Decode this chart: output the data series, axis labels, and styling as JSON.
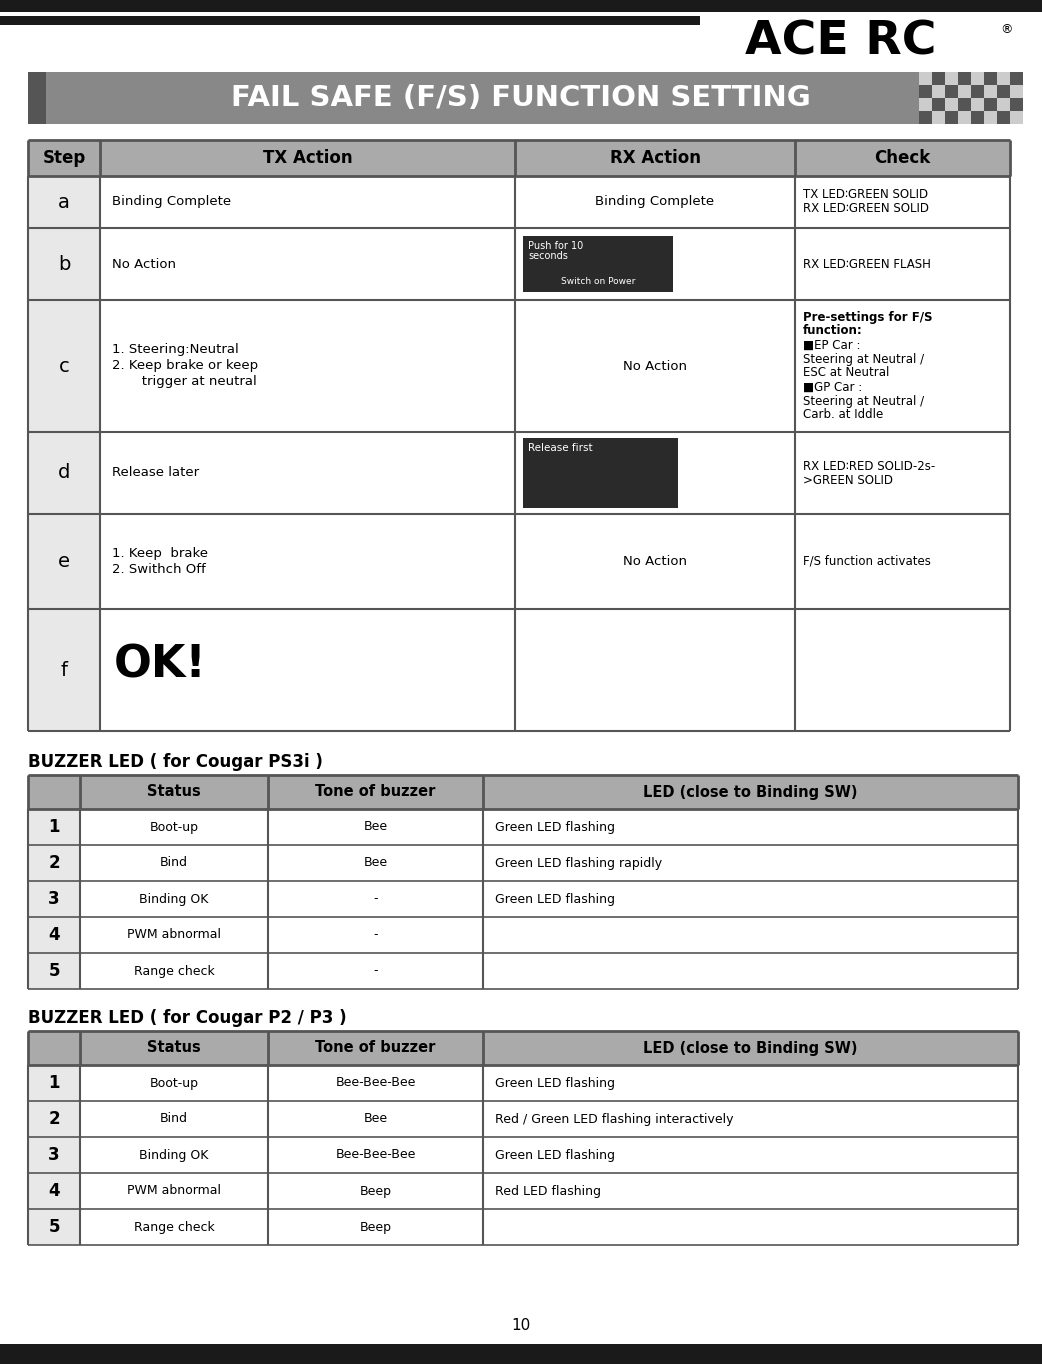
{
  "page_bg": "#ffffff",
  "top_bar_color": "#1a1a1a",
  "title_bg": "#888888",
  "title_text": "FAIL SAFE (F/S) FUNCTION SETTING",
  "ace_rc_text": "ACE RC",
  "page_number": "10",
  "main_table_headers": [
    "Step",
    "TX Action",
    "RX Action",
    "Check"
  ],
  "table1_title": "BUZZER LED ( for Cougar PS3i )",
  "table1_headers": [
    "",
    "Status",
    "Tone of buzzer",
    "LED (close to Binding SW)"
  ],
  "table1_rows": [
    [
      "1",
      "Boot-up",
      "Bee",
      "Green LED flashing"
    ],
    [
      "2",
      "Bind",
      "Bee",
      "Green LED flashing rapidly"
    ],
    [
      "3",
      "Binding OK",
      "-",
      "Green LED flashing"
    ],
    [
      "4",
      "PWM abnormal",
      "-",
      ""
    ],
    [
      "5",
      "Range check",
      "-",
      ""
    ]
  ],
  "table2_title": "BUZZER LED ( for Cougar P2 / P3 )",
  "table2_headers": [
    "",
    "Status",
    "Tone of buzzer",
    "LED (close to Binding SW)"
  ],
  "table2_rows": [
    [
      "1",
      "Boot-up",
      "Bee-Bee-Bee",
      "Green LED flashing"
    ],
    [
      "2",
      "Bind",
      "Bee",
      "Red / Green LED flashing interactively"
    ],
    [
      "3",
      "Binding OK",
      "Bee-Bee-Bee",
      "Green LED flashing"
    ],
    [
      "4",
      "PWM abnormal",
      "Beep",
      "Red LED flashing"
    ],
    [
      "5",
      "Range check",
      "Beep",
      ""
    ]
  ],
  "table_border_color": "#555555"
}
